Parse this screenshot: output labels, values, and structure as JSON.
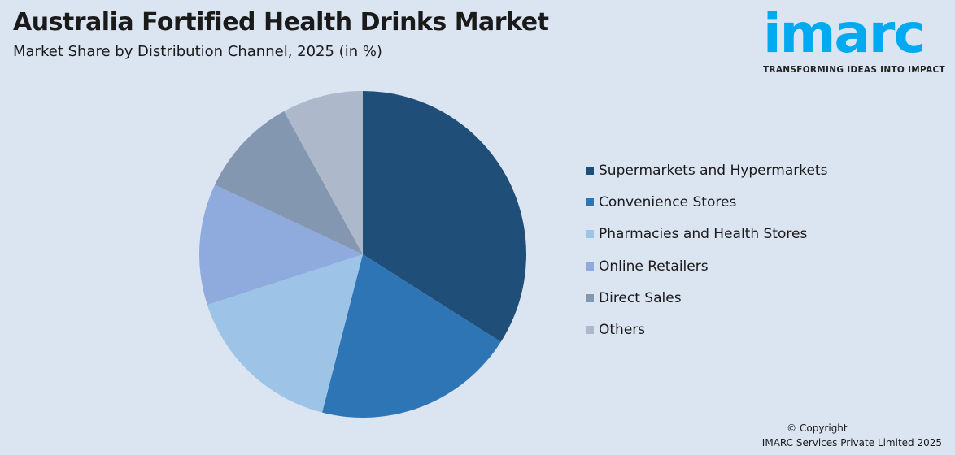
{
  "chart_data": {
    "type": "pie",
    "title": "Australia Fortified Health Drinks Market",
    "subtitle": "Market Share by Distribution Channel, 2025 (in %)",
    "categories": [
      "Supermarkets and Hypermarkets",
      "Convenience Stores",
      "Pharmacies and Health Stores",
      "Online Retailers",
      "Direct Sales",
      "Others"
    ],
    "values": [
      34,
      20,
      16,
      12,
      10,
      8
    ],
    "colors": [
      "#1f4e79",
      "#2e75b6",
      "#9dc3e6",
      "#8faadc",
      "#8497b0",
      "#adb9ca"
    ],
    "legend_position": "right",
    "start_angle": "12 o'clock, clockwise"
  },
  "logo": {
    "word": "imarc",
    "tagline": "TRANSFORMING IDEAS INTO IMPACT"
  },
  "footer": {
    "copyright": "© Copyright",
    "company": "IMARC Services Private Limited 2025"
  }
}
